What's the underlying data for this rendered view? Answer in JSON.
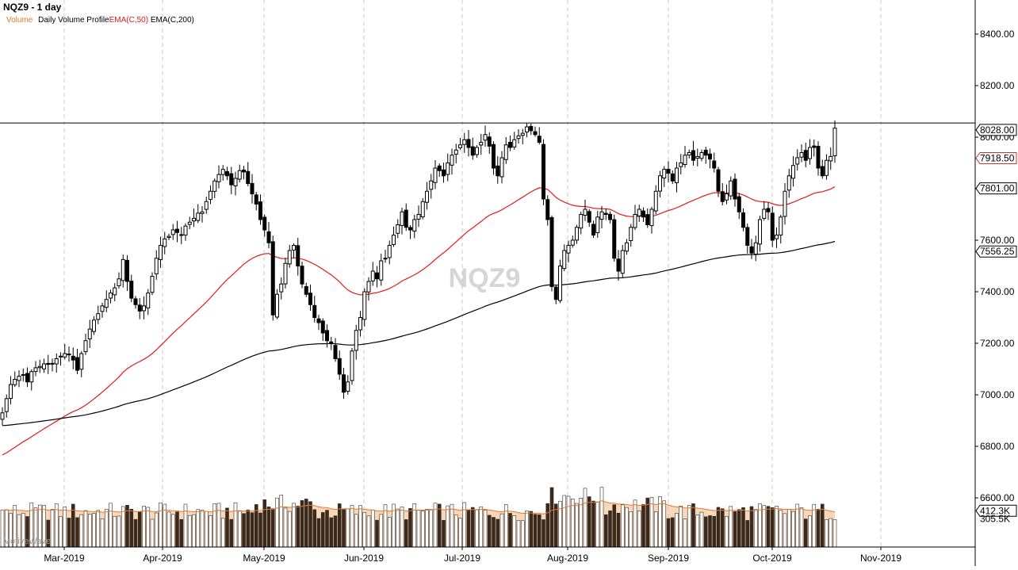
{
  "header": {
    "title": "NQZ9 - 1 day",
    "legend": [
      {
        "label": "Volume",
        "color": "#d97a2b"
      },
      {
        "label": "Daily Volume Profile",
        "color": "#000000"
      },
      {
        "label": "EMA(C,50)",
        "color": "#e31a1c"
      },
      {
        "label": "EMA(C,200)",
        "color": "#000000"
      }
    ]
  },
  "watermark": "NQZ9",
  "brand_watermark": "MotiveWave",
  "colors": {
    "up_candle": "#ffffff",
    "down_candle": "#000000",
    "ema50": "#e31a1c",
    "ema200": "#000000",
    "volume_fill": "#f6c9a4",
    "volume_line": "#e07a30",
    "grid": "#c8c8c8"
  },
  "chart_data": {
    "type": "candlestick",
    "symbol": "NQZ9",
    "interval": "1 day",
    "x_ticks": [
      "Mar-2019",
      "Apr-2019",
      "May-2019",
      "Jun-2019",
      "Jul-2019",
      "Aug-2019",
      "Sep-2019",
      "Oct-2019",
      "Nov-2019"
    ],
    "y_ticks": [
      8400,
      8200,
      8000,
      7800,
      7600,
      7400,
      7200,
      7000,
      6800,
      6600
    ],
    "y_tick_labels": [
      "8400.00",
      "8200.00",
      "8000.00",
      "7800.00",
      "7600.00",
      "7400.00",
      "7200.00",
      "7000.00",
      "6800.00",
      "6600.00"
    ],
    "ylim": [
      6440,
      8500
    ],
    "horizontal_line": {
      "value": 8055
    },
    "price_labels": [
      {
        "label": "8028.00",
        "value": 8028,
        "style": "box"
      },
      {
        "label": "7918.50",
        "value": 7918.5,
        "style": "box-red"
      },
      {
        "label": "7801.00",
        "value": 7801,
        "style": "box"
      },
      {
        "label": "7556.25",
        "value": 7556.25,
        "style": "box"
      },
      {
        "label": "412.3K",
        "value": 6550,
        "style": "box"
      },
      {
        "label": "305.5K",
        "value": 6518,
        "style": "plain"
      }
    ],
    "closes": [
      6930,
      6985,
      7040,
      7060,
      7072,
      7078,
      7050,
      7090,
      7105,
      7110,
      7120,
      7118,
      7122,
      7140,
      7150,
      7160,
      7155,
      7135,
      7095,
      7160,
      7210,
      7255,
      7290,
      7315,
      7345,
      7370,
      7395,
      7415,
      7450,
      7525,
      7440,
      7375,
      7350,
      7325,
      7345,
      7395,
      7460,
      7530,
      7580,
      7605,
      7615,
      7640,
      7630,
      7620,
      7655,
      7670,
      7685,
      7705,
      7710,
      7750,
      7790,
      7830,
      7855,
      7875,
      7850,
      7815,
      7840,
      7870,
      7865,
      7820,
      7780,
      7740,
      7680,
      7640,
      7590,
      7310,
      7390,
      7430,
      7510,
      7560,
      7580,
      7500,
      7430,
      7390,
      7350,
      7300,
      7280,
      7240,
      7210,
      7200,
      7140,
      7080,
      7010,
      7050,
      7170,
      7250,
      7300,
      7400,
      7440,
      7480,
      7450,
      7520,
      7530,
      7580,
      7620,
      7660,
      7710,
      7650,
      7640,
      7680,
      7700,
      7750,
      7790,
      7830,
      7880,
      7870,
      7850,
      7900,
      7930,
      7950,
      7970,
      7990,
      7960,
      7930,
      7960,
      7980,
      8010,
      7965,
      7880,
      7850,
      7920,
      7970,
      7960,
      7990,
      8005,
      8015,
      8040,
      8025,
      8010,
      7980,
      7760,
      7680,
      7420,
      7370,
      7500,
      7560,
      7580,
      7600,
      7650,
      7700,
      7720,
      7670,
      7620,
      7690,
      7710,
      7700,
      7680,
      7530,
      7480,
      7560,
      7590,
      7650,
      7700,
      7720,
      7690,
      7660,
      7720,
      7790,
      7850,
      7875,
      7860,
      7830,
      7880,
      7900,
      7930,
      7940,
      7910,
      7925,
      7940,
      7930,
      7915,
      7880,
      7790,
      7750,
      7780,
      7830,
      7760,
      7710,
      7650,
      7580,
      7550,
      7590,
      7680,
      7720,
      7710,
      7600,
      7620,
      7690,
      7790,
      7850,
      7890,
      7920,
      7940,
      7910,
      7960,
      7960,
      7880,
      7850,
      7910,
      7925,
      8035
    ],
    "series": [
      {
        "name": "EMA(C,50)",
        "values": [
          6760,
          7517,
          7178,
          7520,
          7717,
          7780,
          7801
        ]
      },
      {
        "name": "EMA(C,200)",
        "values": [
          6880,
          6911,
          7094,
          7192,
          7303,
          7398,
          7458,
          7501,
          7556.25
        ]
      }
    ],
    "volume": {
      "label": "Volume",
      "last_value": "305.5K",
      "profile_value": "412.3K"
    }
  }
}
